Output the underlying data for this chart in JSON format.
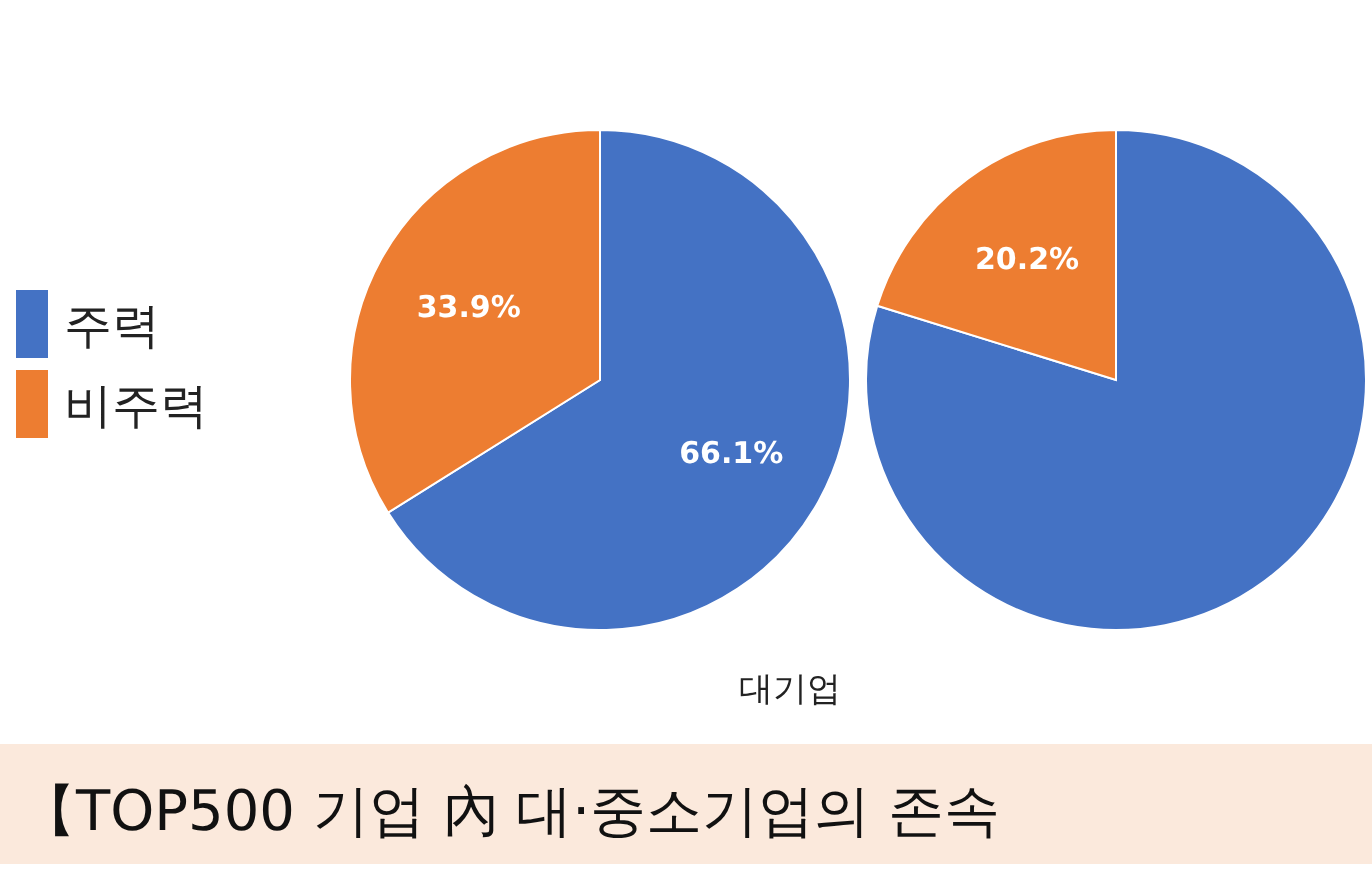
{
  "chart_data": [
    {
      "type": "pie",
      "title": "대기업",
      "categories": [
        "주력",
        "비주력"
      ],
      "values": [
        66.1,
        33.9
      ],
      "colors": [
        "#4472c4",
        "#ed7d31"
      ],
      "value_labels": [
        "66.1%",
        "33.9%"
      ],
      "legend": "left",
      "annotations": [
        "【TOP500 기업 內 대·중소기업의 존속"
      ]
    },
    {
      "type": "pie",
      "categories": [
        null,
        null
      ],
      "values": [
        79.8,
        20.2
      ],
      "colors": [
        "#4472c4",
        "#ed7d31"
      ],
      "value_labels": [
        null,
        "20.2%"
      ]
    }
  ]
}
